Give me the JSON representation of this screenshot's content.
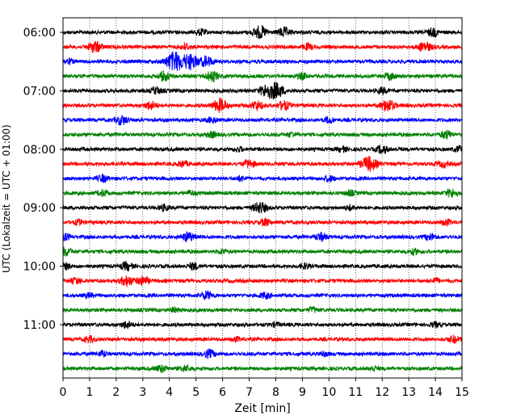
{
  "chart_data": {
    "type": "line",
    "xlabel": "Zeit  [min]",
    "ylabel": "UTC (Lokalzeit = UTC + 01:00)",
    "xlim": [
      0,
      15
    ],
    "x_ticks": [
      "0",
      "1",
      "2",
      "3",
      "4",
      "5",
      "6",
      "7",
      "8",
      "9",
      "10",
      "11",
      "12",
      "13",
      "14",
      "15"
    ],
    "y_tick_labels": [
      "06:00",
      "07:00",
      "08:00",
      "09:00",
      "10:00",
      "11:00"
    ],
    "grid": "vertical-dotted",
    "trace_interval_minutes": 15,
    "start_time": "06:00",
    "trace_colors": [
      "#000000",
      "#ff0000",
      "#0000ff",
      "#008000"
    ],
    "traces": [
      {
        "time": "06:00",
        "color": "#000000",
        "bursts": [
          [
            7.4,
            2.2
          ],
          [
            8.3,
            1.6
          ],
          [
            13.9,
            1.4
          ],
          [
            5.2,
            1.0
          ]
        ]
      },
      {
        "time": "06:15",
        "color": "#ff0000",
        "bursts": [
          [
            1.2,
            2.0
          ],
          [
            13.6,
            1.8
          ],
          [
            9.2,
            1.0
          ],
          [
            4.6,
            1.0
          ]
        ]
      },
      {
        "time": "06:30",
        "color": "#0000ff",
        "bursts": [
          [
            4.2,
            3.5
          ],
          [
            4.8,
            2.6
          ],
          [
            5.4,
            1.8
          ],
          [
            0.2,
            0.9
          ]
        ]
      },
      {
        "time": "06:45",
        "color": "#008000",
        "bursts": [
          [
            3.8,
            1.6
          ],
          [
            5.6,
            1.8
          ],
          [
            12.3,
            1.2
          ],
          [
            9.0,
            1.0
          ]
        ]
      },
      {
        "time": "07:00",
        "color": "#000000",
        "bursts": [
          [
            8.0,
            2.8
          ],
          [
            7.6,
            1.8
          ],
          [
            3.5,
            1.2
          ],
          [
            12.0,
            1.0
          ]
        ]
      },
      {
        "time": "07:15",
        "color": "#ff0000",
        "bursts": [
          [
            5.9,
            2.4
          ],
          [
            12.2,
            2.2
          ],
          [
            7.3,
            1.6
          ],
          [
            3.3,
            1.4
          ],
          [
            8.3,
            1.6
          ]
        ]
      },
      {
        "time": "07:30",
        "color": "#0000ff",
        "bursts": [
          [
            2.2,
            1.6
          ],
          [
            5.6,
            1.0
          ],
          [
            10.0,
            1.0
          ]
        ]
      },
      {
        "time": "07:45",
        "color": "#008000",
        "bursts": [
          [
            14.4,
            1.4
          ],
          [
            5.6,
            1.0
          ],
          [
            8.6,
            0.8
          ]
        ]
      },
      {
        "time": "08:00",
        "color": "#000000",
        "bursts": [
          [
            12.0,
            1.4
          ],
          [
            10.5,
            0.9
          ],
          [
            6.6,
            0.7
          ],
          [
            14.9,
            1.0
          ]
        ]
      },
      {
        "time": "08:15",
        "color": "#ff0000",
        "bursts": [
          [
            11.5,
            2.6
          ],
          [
            7.0,
            1.4
          ],
          [
            4.5,
            1.0
          ],
          [
            14.3,
            1.0
          ]
        ]
      },
      {
        "time": "08:30",
        "color": "#0000ff",
        "bursts": [
          [
            1.5,
            1.2
          ],
          [
            10.0,
            1.0
          ],
          [
            6.7,
            0.8
          ]
        ]
      },
      {
        "time": "08:45",
        "color": "#008000",
        "bursts": [
          [
            14.6,
            1.4
          ],
          [
            1.5,
            1.0
          ],
          [
            10.8,
            0.9
          ],
          [
            4.8,
            0.8
          ]
        ]
      },
      {
        "time": "09:00",
        "color": "#000000",
        "bursts": [
          [
            7.4,
            2.0
          ],
          [
            3.8,
            1.0
          ],
          [
            10.8,
            0.8
          ]
        ]
      },
      {
        "time": "09:15",
        "color": "#ff0000",
        "bursts": [
          [
            7.6,
            1.2
          ],
          [
            14.4,
            1.0
          ],
          [
            0.6,
            0.8
          ]
        ]
      },
      {
        "time": "09:30",
        "color": "#0000ff",
        "bursts": [
          [
            4.7,
            1.6
          ],
          [
            9.7,
            1.4
          ],
          [
            13.8,
            1.2
          ],
          [
            0.1,
            1.0
          ]
        ]
      },
      {
        "time": "09:45",
        "color": "#008000",
        "bursts": [
          [
            0.1,
            1.4
          ],
          [
            13.2,
            0.9
          ],
          [
            6.0,
            0.7
          ]
        ]
      },
      {
        "time": "10:00",
        "color": "#000000",
        "bursts": [
          [
            2.4,
            1.4
          ],
          [
            4.9,
            1.2
          ],
          [
            0.1,
            1.0
          ],
          [
            9.1,
            0.9
          ]
        ]
      },
      {
        "time": "10:15",
        "color": "#ff0000",
        "bursts": [
          [
            2.4,
            1.8
          ],
          [
            3.0,
            1.5
          ],
          [
            0.5,
            1.0
          ],
          [
            14.0,
            0.8
          ]
        ]
      },
      {
        "time": "10:30",
        "color": "#0000ff",
        "bursts": [
          [
            5.4,
            1.4
          ],
          [
            7.6,
            1.0
          ],
          [
            1.0,
            0.8
          ]
        ]
      },
      {
        "time": "10:45",
        "color": "#008000",
        "bursts": [
          [
            9.4,
            0.9
          ],
          [
            4.2,
            0.7
          ]
        ]
      },
      {
        "time": "11:00",
        "color": "#000000",
        "bursts": [
          [
            2.4,
            1.2
          ],
          [
            14.0,
            0.8
          ],
          [
            8.0,
            0.7
          ]
        ]
      },
      {
        "time": "11:15",
        "color": "#ff0000",
        "bursts": [
          [
            14.7,
            1.2
          ],
          [
            1.0,
            1.0
          ],
          [
            6.5,
            0.7
          ]
        ]
      },
      {
        "time": "11:30",
        "color": "#0000ff",
        "bursts": [
          [
            5.5,
            1.4
          ],
          [
            1.5,
            0.9
          ],
          [
            9.8,
            0.7
          ]
        ]
      },
      {
        "time": "11:45",
        "color": "#008000",
        "bursts": [
          [
            3.7,
            1.2
          ],
          [
            4.6,
            1.0
          ],
          [
            11.7,
            0.7
          ]
        ]
      }
    ]
  }
}
